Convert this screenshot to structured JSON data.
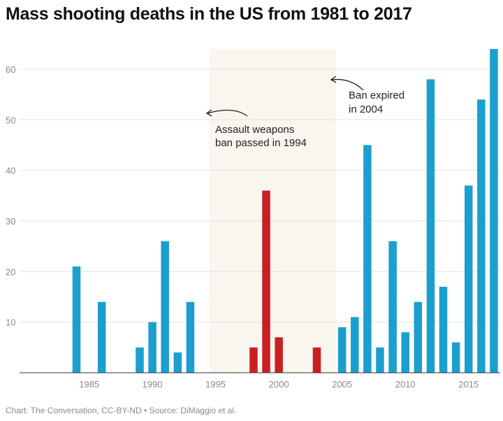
{
  "chart_data": {
    "type": "bar",
    "title": "Mass shooting deaths in the US from 1981 to 2017",
    "xlabel": "",
    "ylabel": "",
    "x": [
      1984,
      1986,
      1989,
      1990,
      1991,
      1992,
      1993,
      1998,
      1999,
      2000,
      2003,
      2005,
      2006,
      2007,
      2008,
      2009,
      2010,
      2011,
      2012,
      2013,
      2014,
      2015,
      2016,
      2017
    ],
    "values": [
      21,
      14,
      5,
      10,
      26,
      4,
      14,
      5,
      36,
      7,
      5,
      9,
      11,
      45,
      5,
      26,
      8,
      14,
      58,
      17,
      6,
      37,
      54,
      64
    ],
    "xlim": [
      1979.5,
      2017.5
    ],
    "ylim": [
      0,
      64
    ],
    "x_ticks": [
      "1985",
      "1990",
      "1995",
      "2000",
      "2005",
      "2010",
      "2015"
    ],
    "y_ticks": [
      "10",
      "20",
      "30",
      "40",
      "50",
      "60"
    ],
    "grid": true,
    "colors": {
      "default": "#1a9fce",
      "ban_period": "#c82022",
      "ban_shade": "#f9f5ef"
    },
    "highlight_range": [
      1994.5,
      2004.5
    ],
    "annotations": [
      {
        "lines": [
          "Assault weapons",
          "ban passed in 1994"
        ]
      },
      {
        "lines": [
          "Ban expired",
          "in 2004"
        ]
      }
    ]
  },
  "footer": "Chart: The Conversation, CC-BY-ND • Source: DiMaggio et al."
}
